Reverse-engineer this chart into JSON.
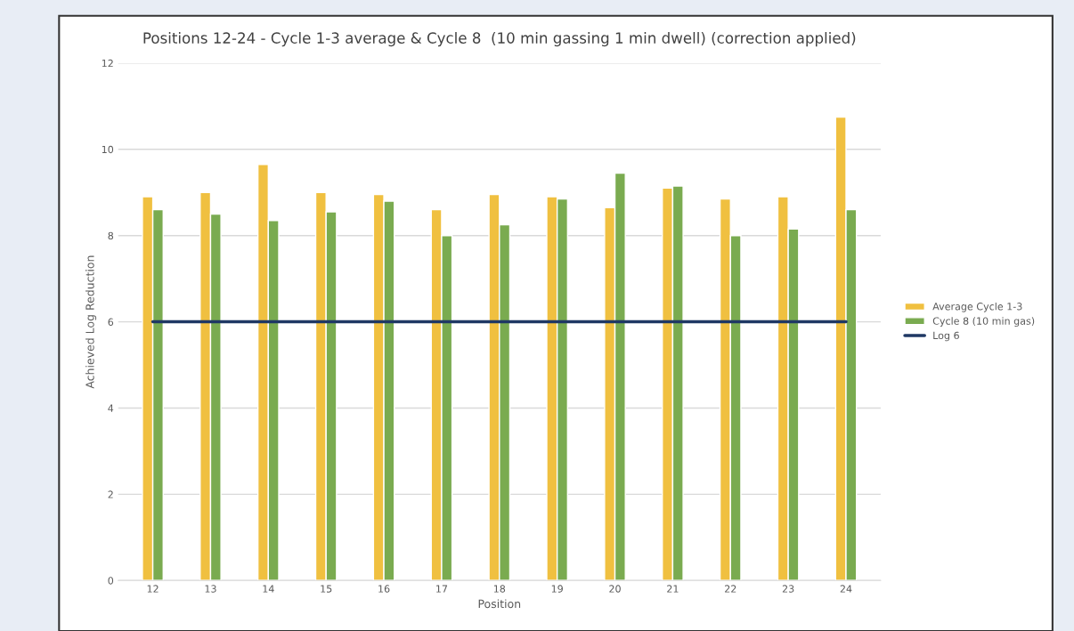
{
  "chart_data": {
    "type": "bar",
    "title": "Positions 12-24 - Cycle 1-3 average & Cycle 8  (10 min gassing 1 min dwell) (correction applied)",
    "xlabel": "Position",
    "ylabel": "Achieved Log Reduction",
    "categories": [
      "12",
      "13",
      "14",
      "15",
      "16",
      "17",
      "18",
      "19",
      "20",
      "21",
      "22",
      "23",
      "24"
    ],
    "series": [
      {
        "name": "Average Cycle 1-3",
        "color": "#f0c040",
        "values": [
          8.9,
          9.0,
          9.65,
          9.0,
          8.95,
          8.6,
          8.95,
          8.9,
          8.65,
          9.1,
          8.85,
          8.9,
          10.75
        ]
      },
      {
        "name": "Cycle 8 (10 min gas)",
        "color": "#7aab50",
        "values": [
          8.6,
          8.5,
          8.35,
          8.55,
          8.8,
          8.0,
          8.25,
          8.85,
          9.45,
          9.15,
          8.0,
          8.15,
          8.6
        ]
      },
      {
        "name": "Log 6",
        "type": "line",
        "color": "#1f3864",
        "values": [
          6,
          6,
          6,
          6,
          6,
          6,
          6,
          6,
          6,
          6,
          6,
          6,
          6
        ]
      }
    ],
    "ylim": [
      0,
      12
    ],
    "yticks": [
      0,
      2,
      4,
      6,
      8,
      10,
      12
    ],
    "grid": "y",
    "legend": "right"
  }
}
